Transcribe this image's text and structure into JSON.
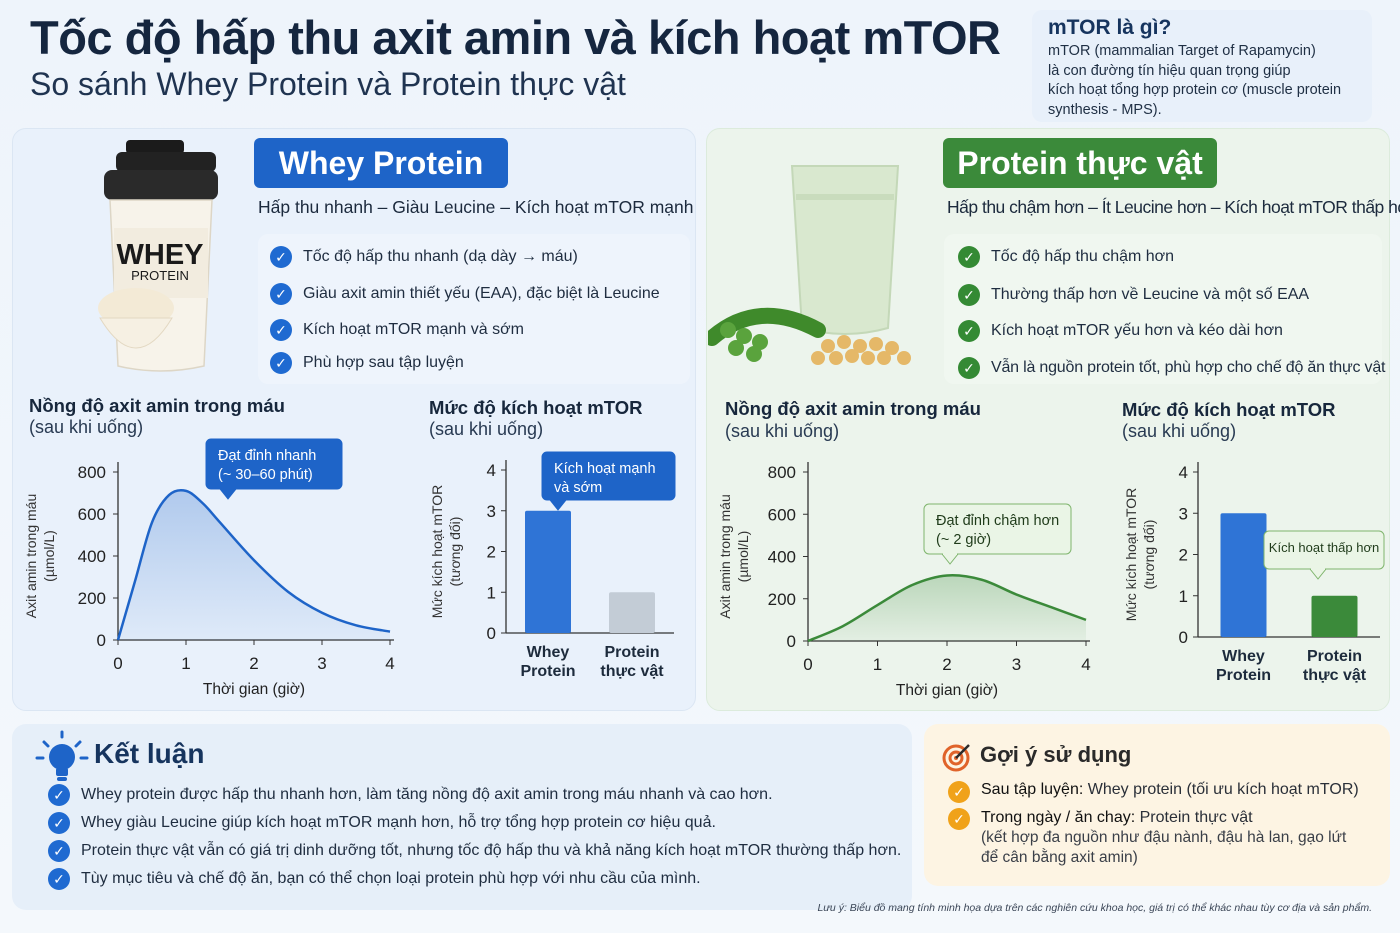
{
  "header": {
    "title": "Tốc độ hấp thu axit amin và kích hoạt mTOR",
    "subtitle": "So sánh Whey Protein và Protein thực vật"
  },
  "info": {
    "heading": "mTOR là gì?",
    "lines": [
      "mTOR (mammalian Target of Rapamycin)",
      "là con đường tín hiệu quan trọng giúp",
      "kích hoạt tổng hợp protein cơ (muscle protein",
      "synthesis - MPS)."
    ]
  },
  "whey": {
    "badge": "Whey Protein",
    "tagline": "Hấp thu nhanh – Giàu Leucine – Kích hoạt mTOR mạnh",
    "product_label_big": "WHEY",
    "product_label_small": "PROTEIN",
    "features": [
      "Tốc độ hấp thu nhanh (dạ dày → máu)",
      "Giàu axit amin thiết yếu (EAA), đặc biệt là Leucine",
      "Kích hoạt mTOR mạnh và sớm",
      "Phù hợp sau tập luyện"
    ]
  },
  "plant": {
    "badge": "Protein thực vật",
    "tagline": "Hấp thu chậm hơn – Ít Leucine hơn – Kích hoạt mTOR thấp hơn",
    "features": [
      "Tốc độ hấp thu chậm hơn",
      "Thường thấp hơn về Leucine và một số EAA",
      "Kích hoạt mTOR yếu hơn và kéo dài hơn",
      "Vẫn là nguồn protein tốt, phù hợp cho chế độ ăn thực vật"
    ]
  },
  "colors": {
    "whey_blue": "#1e64c8",
    "plant_green": "#3b8a3a",
    "plant_bar_gray": "#c3ccd6",
    "suggestion_orange": "#f0a21a"
  },
  "chart_data": [
    {
      "type": "area",
      "title": "Nồng độ axit amin trong máu",
      "subtitle": "(sau khi uống)",
      "xlabel": "Thời gian (giờ)",
      "ylabel": "Axit amin trong máu\n(µmol/L)",
      "xlim": [
        0,
        4
      ],
      "ylim": [
        0,
        800
      ],
      "xticks": [
        0,
        1,
        2,
        3,
        4
      ],
      "yticks": [
        0,
        200,
        400,
        600,
        800
      ],
      "color": "#1e64c8",
      "series": [
        {
          "x": [
            0,
            0.25,
            0.5,
            0.75,
            1,
            1.25,
            1.5,
            2,
            2.5,
            3,
            3.5,
            4
          ],
          "y": [
            0,
            280,
            560,
            690,
            710,
            650,
            560,
            380,
            230,
            130,
            70,
            40
          ]
        }
      ],
      "annotation": "Đạt đỉnh nhanh\n(~ 30–60 phút)"
    },
    {
      "type": "bar",
      "title": "Mức độ kích hoạt mTOR",
      "subtitle": "(sau khi uống)",
      "ylabel": "Mức kích hoạt mTOR\n(tương đối)",
      "ylim": [
        0,
        4
      ],
      "yticks": [
        0,
        1,
        2,
        3,
        4
      ],
      "categories": [
        "Whey\nProtein",
        "Protein\nthực vật"
      ],
      "values": [
        3,
        1
      ],
      "bar_colors": [
        "#2f74d6",
        "#c3ccd6"
      ],
      "annotation": "Kích hoạt mạnh\nvà sớm"
    },
    {
      "type": "area",
      "title": "Nồng độ axit amin trong máu",
      "subtitle": "(sau khi uống)",
      "xlabel": "Thời gian (giờ)",
      "ylabel": "Axit amin trong máu\n(µmol/L)",
      "xlim": [
        0,
        4
      ],
      "ylim": [
        0,
        800
      ],
      "xticks": [
        0,
        1,
        2,
        3,
        4
      ],
      "yticks": [
        0,
        200,
        400,
        600,
        800
      ],
      "color": "#3b8a3a",
      "series": [
        {
          "x": [
            0,
            0.5,
            1,
            1.5,
            2,
            2.5,
            3,
            3.5,
            4
          ],
          "y": [
            0,
            70,
            170,
            265,
            310,
            290,
            220,
            160,
            100
          ]
        }
      ],
      "annotation": "Đạt đỉnh chậm hơn\n(~ 2 giờ)"
    },
    {
      "type": "bar",
      "title": "Mức độ kích hoạt mTOR",
      "subtitle": "(sau khi uống)",
      "ylabel": "Mức kích hoạt mTOR\n(tương đối)",
      "ylim": [
        0,
        4
      ],
      "yticks": [
        0,
        1,
        2,
        3,
        4
      ],
      "categories": [
        "Whey\nProtein",
        "Protein\nthực vật"
      ],
      "values": [
        3,
        1
      ],
      "bar_colors": [
        "#2f74d6",
        "#3b8a3a"
      ],
      "annotation": "Kích hoạt thấp hơn"
    }
  ],
  "conclusion": {
    "heading": "Kết luận",
    "items": [
      "Whey protein được hấp thu nhanh hơn, làm tăng nồng độ axit amin trong máu nhanh và cao hơn.",
      "Whey giàu Leucine giúp kích hoạt mTOR mạnh hơn, hỗ trợ tổng hợp protein cơ hiệu quả.",
      "Protein thực vật vẫn có giá trị dinh dưỡng tốt, nhưng tốc độ hấp thu và khả năng kích hoạt mTOR thường thấp hơn.",
      "Tùy mục tiêu và chế độ ăn, bạn có thể chọn loại protein phù hợp với nhu cầu của mình."
    ]
  },
  "suggestion": {
    "heading": "Gợi ý sử dụng",
    "item1_bold": "Sau tập luyện:",
    "item1_text": " Whey protein (tối ưu kích hoạt mTOR)",
    "item2_bold": "Trong ngày / ăn chay:",
    "item2_text": " Protein thực vật",
    "item2_detail": "(kết hợp đa nguồn như đậu nành, đậu hà lan, gạo lứt để cân bằng axit amin)"
  },
  "footnote": "Lưu ý: Biểu đồ mang tính minh họa dựa trên các nghiên cứu khoa học, giá trị có thể khác nhau tùy cơ địa và sản phẩm."
}
